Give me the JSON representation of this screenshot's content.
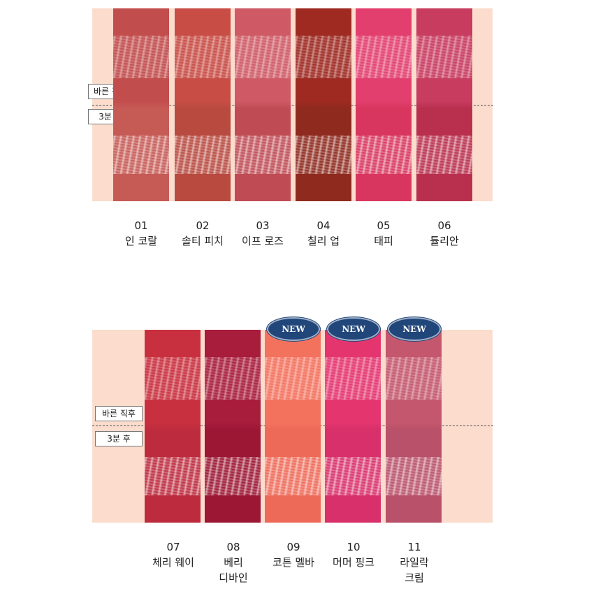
{
  "labels": {
    "right_after": "바른 직후",
    "after_3min": "3분 후",
    "new_badge": "NEW"
  },
  "row1": [
    {
      "num": "01",
      "name": "인 코랄",
      "colors": [
        "#c24d4d",
        "#c65a55"
      ]
    },
    {
      "num": "02",
      "name": "솔티 피치",
      "colors": [
        "#c84d45",
        "#b84a40"
      ]
    },
    {
      "num": "03",
      "name": "이프 로즈",
      "colors": [
        "#cf5a65",
        "#bf4c55"
      ]
    },
    {
      "num": "04",
      "name": "칠리 업",
      "colors": [
        "#9e2a22",
        "#8e2a1e"
      ]
    },
    {
      "num": "05",
      "name": "태피",
      "colors": [
        "#e23f6e",
        "#d8365e"
      ]
    },
    {
      "num": "06",
      "name": "튤리안",
      "colors": [
        "#c83c60",
        "#b9304e"
      ]
    }
  ],
  "row2": [
    {
      "num": "07",
      "name": "체리 웨이",
      "name2": "",
      "colors": [
        "#c9303f",
        "#bd2c3e"
      ]
    },
    {
      "num": "08",
      "name": "베리",
      "name2": "디바인",
      "colors": [
        "#a81c3c",
        "#9c1734"
      ]
    },
    {
      "num": "09",
      "name": "코튼 멜바",
      "name2": "",
      "colors": [
        "#f3725e",
        "#ee6a58"
      ],
      "new": true
    },
    {
      "num": "10",
      "name": "머머 핑크",
      "name2": "",
      "colors": [
        "#e4356f",
        "#d8306a"
      ],
      "new": true
    },
    {
      "num": "11",
      "name": "라일락",
      "name2": "크림",
      "colors": [
        "#c4576d",
        "#b9516a"
      ],
      "new": true
    }
  ]
}
